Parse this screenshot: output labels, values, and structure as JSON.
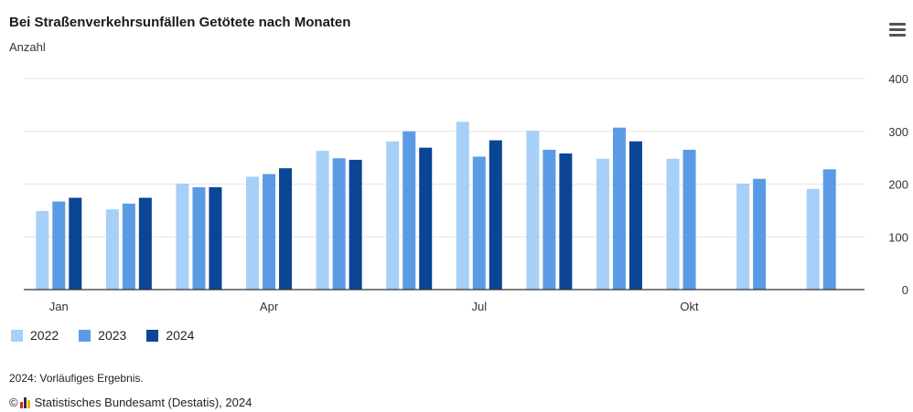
{
  "header": {
    "title": "Bei Straßenverkehrsunfällen Getötete nach Monaten",
    "subtitle": "Anzahl",
    "menu_icon": "hamburger-menu-icon"
  },
  "chart_data": {
    "type": "bar",
    "title": "Bei Straßenverkehrsunfällen Getötete nach Monaten",
    "ylabel": "Anzahl",
    "ylim": [
      0,
      400
    ],
    "yticks": [
      0,
      100,
      200,
      300,
      400
    ],
    "y_axis_position": "right",
    "grid": true,
    "legend_position": "bottom-left",
    "months": 12,
    "x_tick_labels": [
      {
        "index": 0,
        "label": "Jan"
      },
      {
        "index": 3,
        "label": "Apr"
      },
      {
        "index": 6,
        "label": "Jul"
      },
      {
        "index": 9,
        "label": "Okt"
      }
    ],
    "series": [
      {
        "name": "2022",
        "color": "#a6d0f7",
        "values": [
          149,
          152,
          201,
          214,
          263,
          281,
          318,
          301,
          248,
          248,
          201,
          191
        ]
      },
      {
        "name": "2023",
        "color": "#5b9be6",
        "values": [
          167,
          163,
          194,
          219,
          249,
          300,
          252,
          265,
          307,
          265,
          210,
          228
        ]
      },
      {
        "name": "2024",
        "color": "#0b4595",
        "values": [
          174,
          174,
          194,
          230,
          246,
          269,
          283,
          258,
          281,
          null,
          null,
          null
        ]
      }
    ]
  },
  "footer": {
    "note": "2024: Vorläufiges Ergebnis.",
    "copyright_symbol": "©",
    "credit": "Statistisches Bundesamt (Destatis), 2024"
  }
}
